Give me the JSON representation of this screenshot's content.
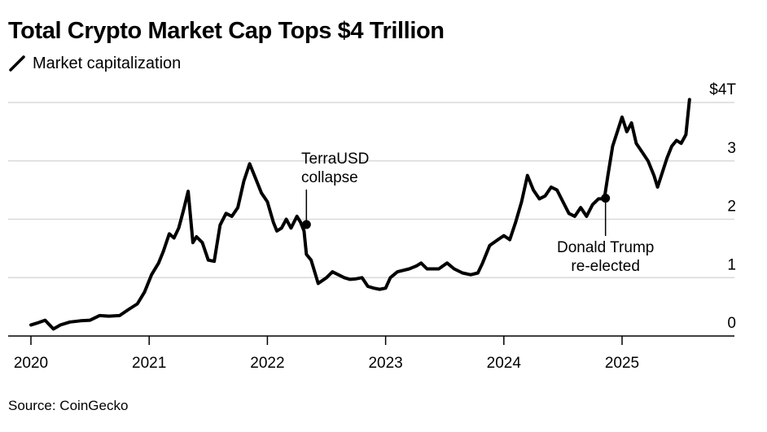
{
  "title": "Total Crypto Market Cap Tops $4 Trillion",
  "legend_label": "Market capitalization",
  "source": "Source: CoinGecko",
  "colors": {
    "line": "#000000",
    "grid": "#d9d9d9",
    "axis": "#000000"
  },
  "chart_data": {
    "type": "line",
    "title": "Total Crypto Market Cap Tops $4 Trillion",
    "ylabel": "",
    "xlabel": "",
    "ylim": [
      0,
      4
    ],
    "xlim": [
      2020.0,
      2025.95
    ],
    "y_ticks": [
      {
        "value": 4,
        "label": "$4T"
      },
      {
        "value": 3,
        "label": "3"
      },
      {
        "value": 2,
        "label": "2"
      },
      {
        "value": 1,
        "label": "1"
      },
      {
        "value": 0,
        "label": "0"
      }
    ],
    "x_ticks": [
      {
        "value": 2020,
        "label": "2020"
      },
      {
        "value": 2021,
        "label": "2021"
      },
      {
        "value": 2022,
        "label": "2022"
      },
      {
        "value": 2023,
        "label": "2023"
      },
      {
        "value": 2024,
        "label": "2024"
      },
      {
        "value": 2025,
        "label": "2025"
      }
    ],
    "grid": true,
    "series": [
      {
        "name": "Market capitalization",
        "points": [
          [
            2020.0,
            0.19
          ],
          [
            2020.05,
            0.22
          ],
          [
            2020.12,
            0.27
          ],
          [
            2020.19,
            0.12
          ],
          [
            2020.25,
            0.19
          ],
          [
            2020.33,
            0.24
          ],
          [
            2020.42,
            0.26
          ],
          [
            2020.5,
            0.27
          ],
          [
            2020.58,
            0.35
          ],
          [
            2020.66,
            0.34
          ],
          [
            2020.75,
            0.35
          ],
          [
            2020.83,
            0.46
          ],
          [
            2020.9,
            0.55
          ],
          [
            2020.96,
            0.75
          ],
          [
            2021.02,
            1.05
          ],
          [
            2021.08,
            1.25
          ],
          [
            2021.12,
            1.45
          ],
          [
            2021.17,
            1.75
          ],
          [
            2021.21,
            1.68
          ],
          [
            2021.25,
            1.85
          ],
          [
            2021.29,
            2.15
          ],
          [
            2021.33,
            2.48
          ],
          [
            2021.37,
            1.6
          ],
          [
            2021.4,
            1.7
          ],
          [
            2021.45,
            1.6
          ],
          [
            2021.5,
            1.3
          ],
          [
            2021.55,
            1.28
          ],
          [
            2021.6,
            1.9
          ],
          [
            2021.65,
            2.1
          ],
          [
            2021.7,
            2.05
          ],
          [
            2021.75,
            2.2
          ],
          [
            2021.8,
            2.65
          ],
          [
            2021.85,
            2.95
          ],
          [
            2021.9,
            2.7
          ],
          [
            2021.95,
            2.45
          ],
          [
            2022.0,
            2.3
          ],
          [
            2022.05,
            1.95
          ],
          [
            2022.08,
            1.8
          ],
          [
            2022.12,
            1.85
          ],
          [
            2022.16,
            2.0
          ],
          [
            2022.2,
            1.85
          ],
          [
            2022.25,
            2.05
          ],
          [
            2022.28,
            1.95
          ],
          [
            2022.31,
            1.8
          ],
          [
            2022.33,
            1.4
          ],
          [
            2022.37,
            1.3
          ],
          [
            2022.43,
            0.9
          ],
          [
            2022.5,
            1.0
          ],
          [
            2022.55,
            1.1
          ],
          [
            2022.6,
            1.05
          ],
          [
            2022.65,
            1.0
          ],
          [
            2022.7,
            0.97
          ],
          [
            2022.75,
            0.98
          ],
          [
            2022.8,
            1.0
          ],
          [
            2022.85,
            0.85
          ],
          [
            2022.9,
            0.82
          ],
          [
            2022.95,
            0.8
          ],
          [
            2023.0,
            0.82
          ],
          [
            2023.04,
            1.0
          ],
          [
            2023.1,
            1.1
          ],
          [
            2023.2,
            1.15
          ],
          [
            2023.26,
            1.2
          ],
          [
            2023.3,
            1.25
          ],
          [
            2023.35,
            1.15
          ],
          [
            2023.45,
            1.15
          ],
          [
            2023.52,
            1.25
          ],
          [
            2023.58,
            1.15
          ],
          [
            2023.65,
            1.08
          ],
          [
            2023.72,
            1.05
          ],
          [
            2023.78,
            1.08
          ],
          [
            2023.82,
            1.25
          ],
          [
            2023.88,
            1.55
          ],
          [
            2023.95,
            1.65
          ],
          [
            2024.0,
            1.72
          ],
          [
            2024.05,
            1.65
          ],
          [
            2024.1,
            1.95
          ],
          [
            2024.15,
            2.3
          ],
          [
            2024.2,
            2.75
          ],
          [
            2024.25,
            2.5
          ],
          [
            2024.3,
            2.35
          ],
          [
            2024.35,
            2.4
          ],
          [
            2024.4,
            2.55
          ],
          [
            2024.45,
            2.5
          ],
          [
            2024.5,
            2.3
          ],
          [
            2024.55,
            2.1
          ],
          [
            2024.6,
            2.05
          ],
          [
            2024.65,
            2.2
          ],
          [
            2024.7,
            2.05
          ],
          [
            2024.75,
            2.25
          ],
          [
            2024.8,
            2.35
          ],
          [
            2024.85,
            2.35
          ],
          [
            2024.88,
            2.75
          ],
          [
            2024.92,
            3.25
          ],
          [
            2024.96,
            3.5
          ],
          [
            2025.0,
            3.75
          ],
          [
            2025.04,
            3.5
          ],
          [
            2025.08,
            3.65
          ],
          [
            2025.12,
            3.3
          ],
          [
            2025.17,
            3.15
          ],
          [
            2025.22,
            3.0
          ],
          [
            2025.27,
            2.75
          ],
          [
            2025.3,
            2.55
          ],
          [
            2025.34,
            2.8
          ],
          [
            2025.38,
            3.05
          ],
          [
            2025.42,
            3.25
          ],
          [
            2025.46,
            3.35
          ],
          [
            2025.5,
            3.3
          ],
          [
            2025.54,
            3.45
          ],
          [
            2025.57,
            4.05
          ]
        ]
      }
    ],
    "annotations": [
      {
        "x": 2022.33,
        "y": 1.91,
        "lines": [
          "TerraUSD",
          "collapse"
        ]
      },
      {
        "x": 2024.86,
        "y": 2.36,
        "lines": [
          "Donald Trump",
          "re-elected"
        ]
      }
    ]
  }
}
